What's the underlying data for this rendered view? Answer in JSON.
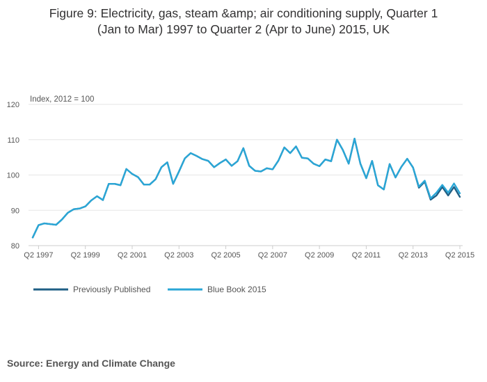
{
  "title_line1": "Figure 9: Electricity, gas, steam &amp; air conditioning supply, Quarter 1",
  "title_line2": "(Jan to Mar) 1997 to Quarter 2 (Apr to June) 2015, UK",
  "source": "Source: Energy and Climate Change",
  "colors": {
    "previous": "#1f5f85",
    "bluebook": "#2aa6d6",
    "grid": "#e6e6e6",
    "text": "#555555",
    "title": "#323132"
  },
  "chart_data": {
    "type": "line",
    "title": "Figure 9: Electricity, gas, steam &amp; air conditioning supply, Quarter 1 (Jan to Mar) 1997 to Quarter 2 (Apr to June) 2015, UK",
    "ylabel": "Index, 2012 = 100",
    "xlabel": "",
    "ylim": [
      80,
      120
    ],
    "yticks": [
      80,
      90,
      100,
      110,
      120
    ],
    "x_start": "Q1 1997",
    "x_end": "Q2 2015",
    "x_tick_labels": [
      "Q2 1997",
      "Q2 1999",
      "Q2 2001",
      "Q2 2003",
      "Q2 2005",
      "Q2 2007",
      "Q2 2009",
      "Q2 2011",
      "Q2 2013",
      "Q2 2015"
    ],
    "x_tick_index": [
      1,
      9,
      17,
      25,
      33,
      41,
      49,
      57,
      65,
      73
    ],
    "grid": true,
    "legend_position": "bottom-left",
    "series": [
      {
        "name": "Previously Published",
        "values": [
          82.3,
          85.8,
          86.3,
          86.1,
          85.9,
          87.4,
          89.3,
          90.3,
          90.5,
          91.1,
          92.8,
          94.0,
          92.9,
          97.5,
          97.5,
          97.1,
          101.7,
          100.3,
          99.4,
          97.3,
          97.3,
          98.8,
          102.2,
          103.6,
          97.5,
          101.0,
          104.7,
          106.2,
          105.4,
          104.5,
          104.0,
          102.2,
          103.4,
          104.4,
          102.6,
          103.9,
          107.6,
          102.6,
          101.2,
          101.0,
          101.9,
          101.6,
          104.1,
          107.8,
          106.2,
          108.1,
          104.9,
          104.7,
          103.2,
          102.5,
          104.4,
          103.9,
          110.0,
          107.1,
          103.2,
          110.3,
          103.2,
          99.1,
          104.0,
          97.1,
          95.9,
          103.1,
          99.3,
          102.3,
          104.6,
          102.1,
          96.4,
          98.1,
          93.0,
          94.2,
          96.6,
          94.2,
          96.6,
          93.8
        ]
      },
      {
        "name": "Blue Book 2015",
        "values": [
          82.3,
          85.8,
          86.3,
          86.1,
          85.9,
          87.4,
          89.3,
          90.3,
          90.5,
          91.1,
          92.8,
          94.0,
          92.9,
          97.5,
          97.5,
          97.1,
          101.7,
          100.3,
          99.4,
          97.3,
          97.3,
          98.8,
          102.2,
          103.6,
          97.5,
          101.0,
          104.7,
          106.2,
          105.4,
          104.5,
          104.0,
          102.2,
          103.4,
          104.4,
          102.6,
          103.9,
          107.6,
          102.6,
          101.2,
          101.0,
          101.9,
          101.6,
          104.1,
          107.8,
          106.2,
          108.1,
          104.9,
          104.7,
          103.2,
          102.5,
          104.4,
          103.9,
          110.0,
          107.1,
          103.2,
          110.3,
          103.2,
          99.1,
          104.0,
          97.1,
          95.9,
          103.1,
          99.3,
          102.3,
          104.6,
          102.1,
          96.7,
          98.4,
          93.4,
          95.0,
          97.2,
          95.0,
          97.6,
          94.8
        ]
      }
    ]
  }
}
